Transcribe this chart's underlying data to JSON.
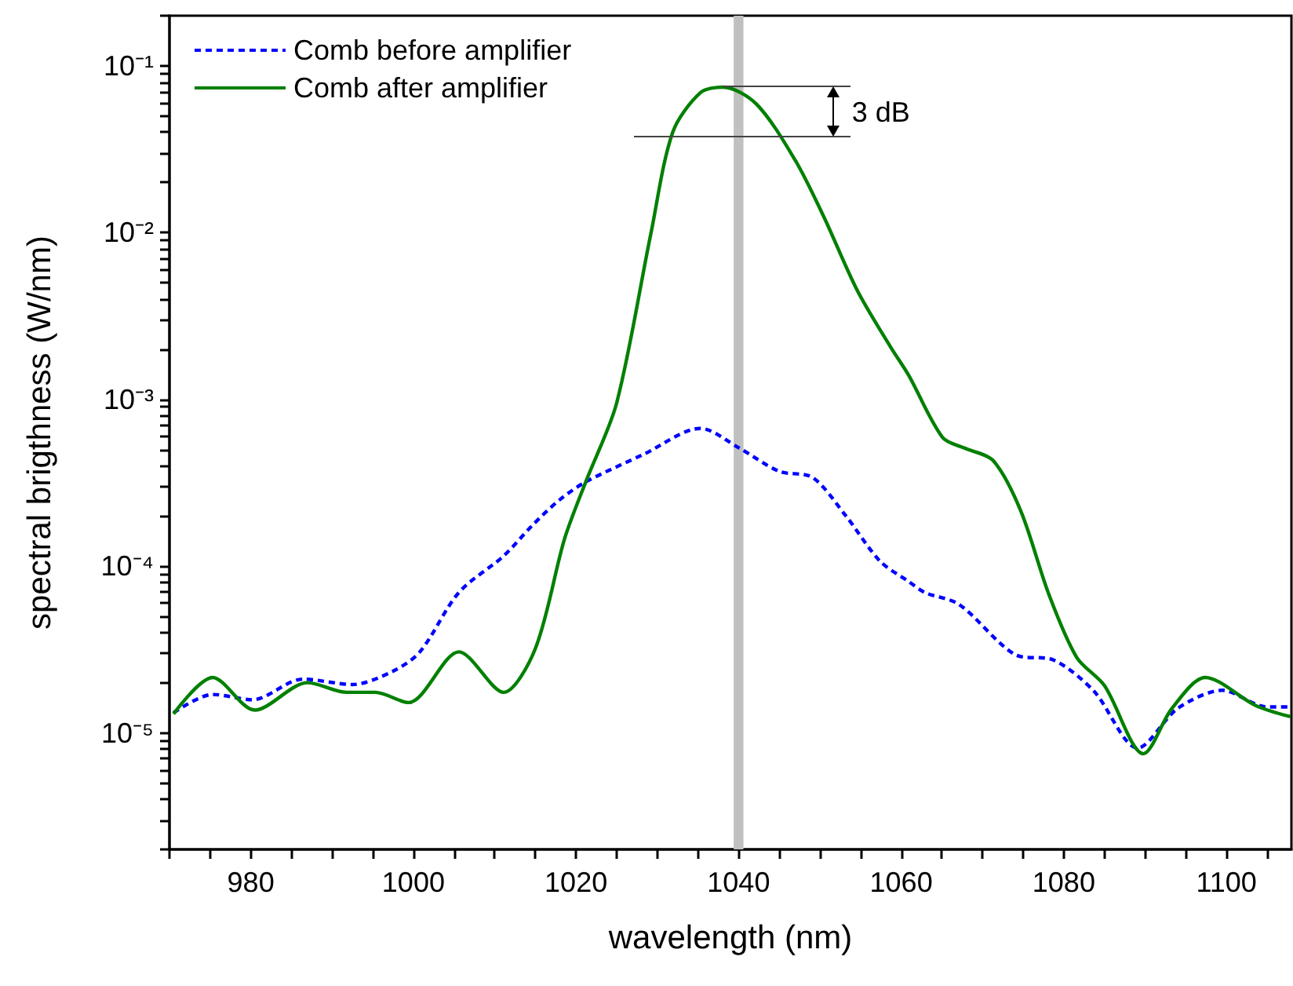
{
  "chart_data": {
    "type": "line",
    "xlabel": "wavelength (nm)",
    "ylabel": "spectral brigthness (W/nm)",
    "log": "y",
    "grid": false,
    "legend": "top left",
    "xlim": [
      970,
      1108
    ],
    "ylim": [
      2e-06,
      0.2
    ],
    "xticks": [
      {
        "value": 970,
        "label": null
      },
      {
        "value": 975,
        "label": null
      },
      980,
      {
        "value": 985,
        "label": null
      },
      {
        "value": 990,
        "label": null
      },
      {
        "value": 995,
        "label": null
      },
      1000,
      {
        "value": 1005,
        "label": null
      },
      {
        "value": 1010,
        "label": null
      },
      {
        "value": 1015,
        "label": null
      },
      1020,
      {
        "value": 1025,
        "label": null
      },
      {
        "value": 1030,
        "label": null
      },
      {
        "value": 1035,
        "label": null
      },
      1040,
      {
        "value": 1045,
        "label": null
      },
      {
        "value": 1050,
        "label": null
      },
      {
        "value": 1055,
        "label": null
      },
      1060,
      {
        "value": 1065,
        "label": null
      },
      {
        "value": 1070,
        "label": null
      },
      {
        "value": 1075,
        "label": null
      },
      1080,
      {
        "value": 1085,
        "label": null
      },
      {
        "value": 1090,
        "label": null
      },
      {
        "value": 1095,
        "label": null
      },
      1100,
      {
        "value": 1105,
        "label": null
      }
    ],
    "yticks": [
      {
        "value": 2e-06,
        "label": null
      },
      {
        "value": 3e-06,
        "label": null
      },
      {
        "value": 4e-06,
        "label": null
      },
      {
        "value": 5e-06,
        "label": null
      },
      {
        "value": 6e-06,
        "label": null
      },
      {
        "value": 7e-06,
        "label": null
      },
      {
        "value": 8e-06,
        "label": null
      },
      {
        "value": 9e-06,
        "label": null
      },
      {
        "value": 1e-05,
        "label": "10⁻⁵"
      },
      {
        "value": 2e-05,
        "label": null
      },
      {
        "value": 3e-05,
        "label": null
      },
      {
        "value": 4e-05,
        "label": null
      },
      {
        "value": 5e-05,
        "label": null
      },
      {
        "value": 6e-05,
        "label": null
      },
      {
        "value": 7e-05,
        "label": null
      },
      {
        "value": 8e-05,
        "label": null
      },
      {
        "value": 9e-05,
        "label": null
      },
      {
        "value": 0.0001,
        "label": "10⁻⁴"
      },
      {
        "value": 0.0002,
        "label": null
      },
      {
        "value": 0.0003,
        "label": null
      },
      {
        "value": 0.0004,
        "label": null
      },
      {
        "value": 0.0005,
        "label": null
      },
      {
        "value": 0.0006,
        "label": null
      },
      {
        "value": 0.0007,
        "label": null
      },
      {
        "value": 0.0008,
        "label": null
      },
      {
        "value": 0.0009,
        "label": null
      },
      {
        "value": 0.001,
        "label": "10⁻³"
      },
      {
        "value": 0.002,
        "label": null
      },
      {
        "value": 0.003,
        "label": null
      },
      {
        "value": 0.004,
        "label": null
      },
      {
        "value": 0.005,
        "label": null
      },
      {
        "value": 0.006,
        "label": null
      },
      {
        "value": 0.007,
        "label": null
      },
      {
        "value": 0.008,
        "label": null
      },
      {
        "value": 0.009,
        "label": null
      },
      {
        "value": 0.01,
        "label": "10⁻²"
      },
      {
        "value": 0.02,
        "label": null
      },
      {
        "value": 0.03,
        "label": null
      },
      {
        "value": 0.04,
        "label": null
      },
      {
        "value": 0.05,
        "label": null
      },
      {
        "value": 0.06,
        "label": null
      },
      {
        "value": 0.07,
        "label": null
      },
      {
        "value": 0.08,
        "label": null
      },
      {
        "value": 0.09,
        "label": null
      },
      {
        "value": 0.1,
        "label": "10⁻¹"
      },
      {
        "value": 0.2,
        "label": null
      }
    ],
    "bands": [
      {
        "axis": "x",
        "from": 1039.4,
        "to": 1040.6,
        "color": "#c0c0c0"
      }
    ],
    "annotations": [
      {
        "text": "3 dB",
        "x": 1038.1,
        "y": 0.0746
      }
    ],
    "series": [
      {
        "name": "Comb before amplifier",
        "color": "#0000ff",
        "line_style": "dashed",
        "x": [
          970.5,
          975.3,
          980.2,
          986.4,
          992.5,
          997.4,
          1000.8,
          1005.6,
          1011.1,
          1014.7,
          1018,
          1021.2,
          1028.4,
          1035.3,
          1040.1,
          1045,
          1049.1,
          1053.2,
          1057.4,
          1060.9,
          1062.9,
          1067.1,
          1074,
          1078.8,
          1083.7,
          1089.1,
          1094,
          1099.5,
          1105,
          1108
        ],
        "values": [
          1.32e-05,
          1.7e-05,
          1.58e-05,
          2.1e-05,
          1.95e-05,
          2.33e-05,
          3.06e-05,
          6.95e-05,
          0.000115,
          0.000177,
          0.00025,
          0.00032,
          0.00047,
          0.00067,
          0.00051,
          0.00037,
          0.00034,
          0.0002,
          0.000107,
          8.1e-05,
          6.95e-05,
          5.9e-05,
          2.95e-05,
          2.73e-05,
          1.78e-05,
          8.1e-06,
          1.4e-05,
          1.8e-05,
          1.43e-05,
          1.43e-05
        ]
      },
      {
        "name": "Comb after amplifier",
        "color": "#008000",
        "line_style": "solid",
        "x": [
          970.5,
          975.3,
          980.5,
          987,
          991.8,
          995.3,
          999.4,
          1005.6,
          1011.1,
          1015,
          1018.6,
          1021.2,
          1025,
          1029.2,
          1031.9,
          1035.3,
          1038.1,
          1042.2,
          1047,
          1050.5,
          1054.6,
          1058.7,
          1060.9,
          1065.1,
          1067.8,
          1071.3,
          1074.7,
          1078.2,
          1081.6,
          1085,
          1089.8,
          1093.3,
          1097.4,
          1103.6,
          1107.9
        ],
        "values": [
          1.3e-05,
          2.15e-05,
          1.37e-05,
          2e-05,
          1.75e-05,
          1.75e-05,
          1.52e-05,
          3.06e-05,
          1.75e-05,
          3.2e-05,
          0.000146,
          0.00032,
          0.00095,
          0.0098,
          0.04,
          0.069,
          0.0746,
          0.059,
          0.027,
          0.0124,
          0.0045,
          0.00206,
          0.0014,
          0.00059,
          0.00051,
          0.00043,
          0.000215,
          6.7e-05,
          2.83e-05,
          1.92e-05,
          7.5e-06,
          1.4e-05,
          2.15e-05,
          1.46e-05,
          1.25e-05
        ]
      }
    ]
  }
}
